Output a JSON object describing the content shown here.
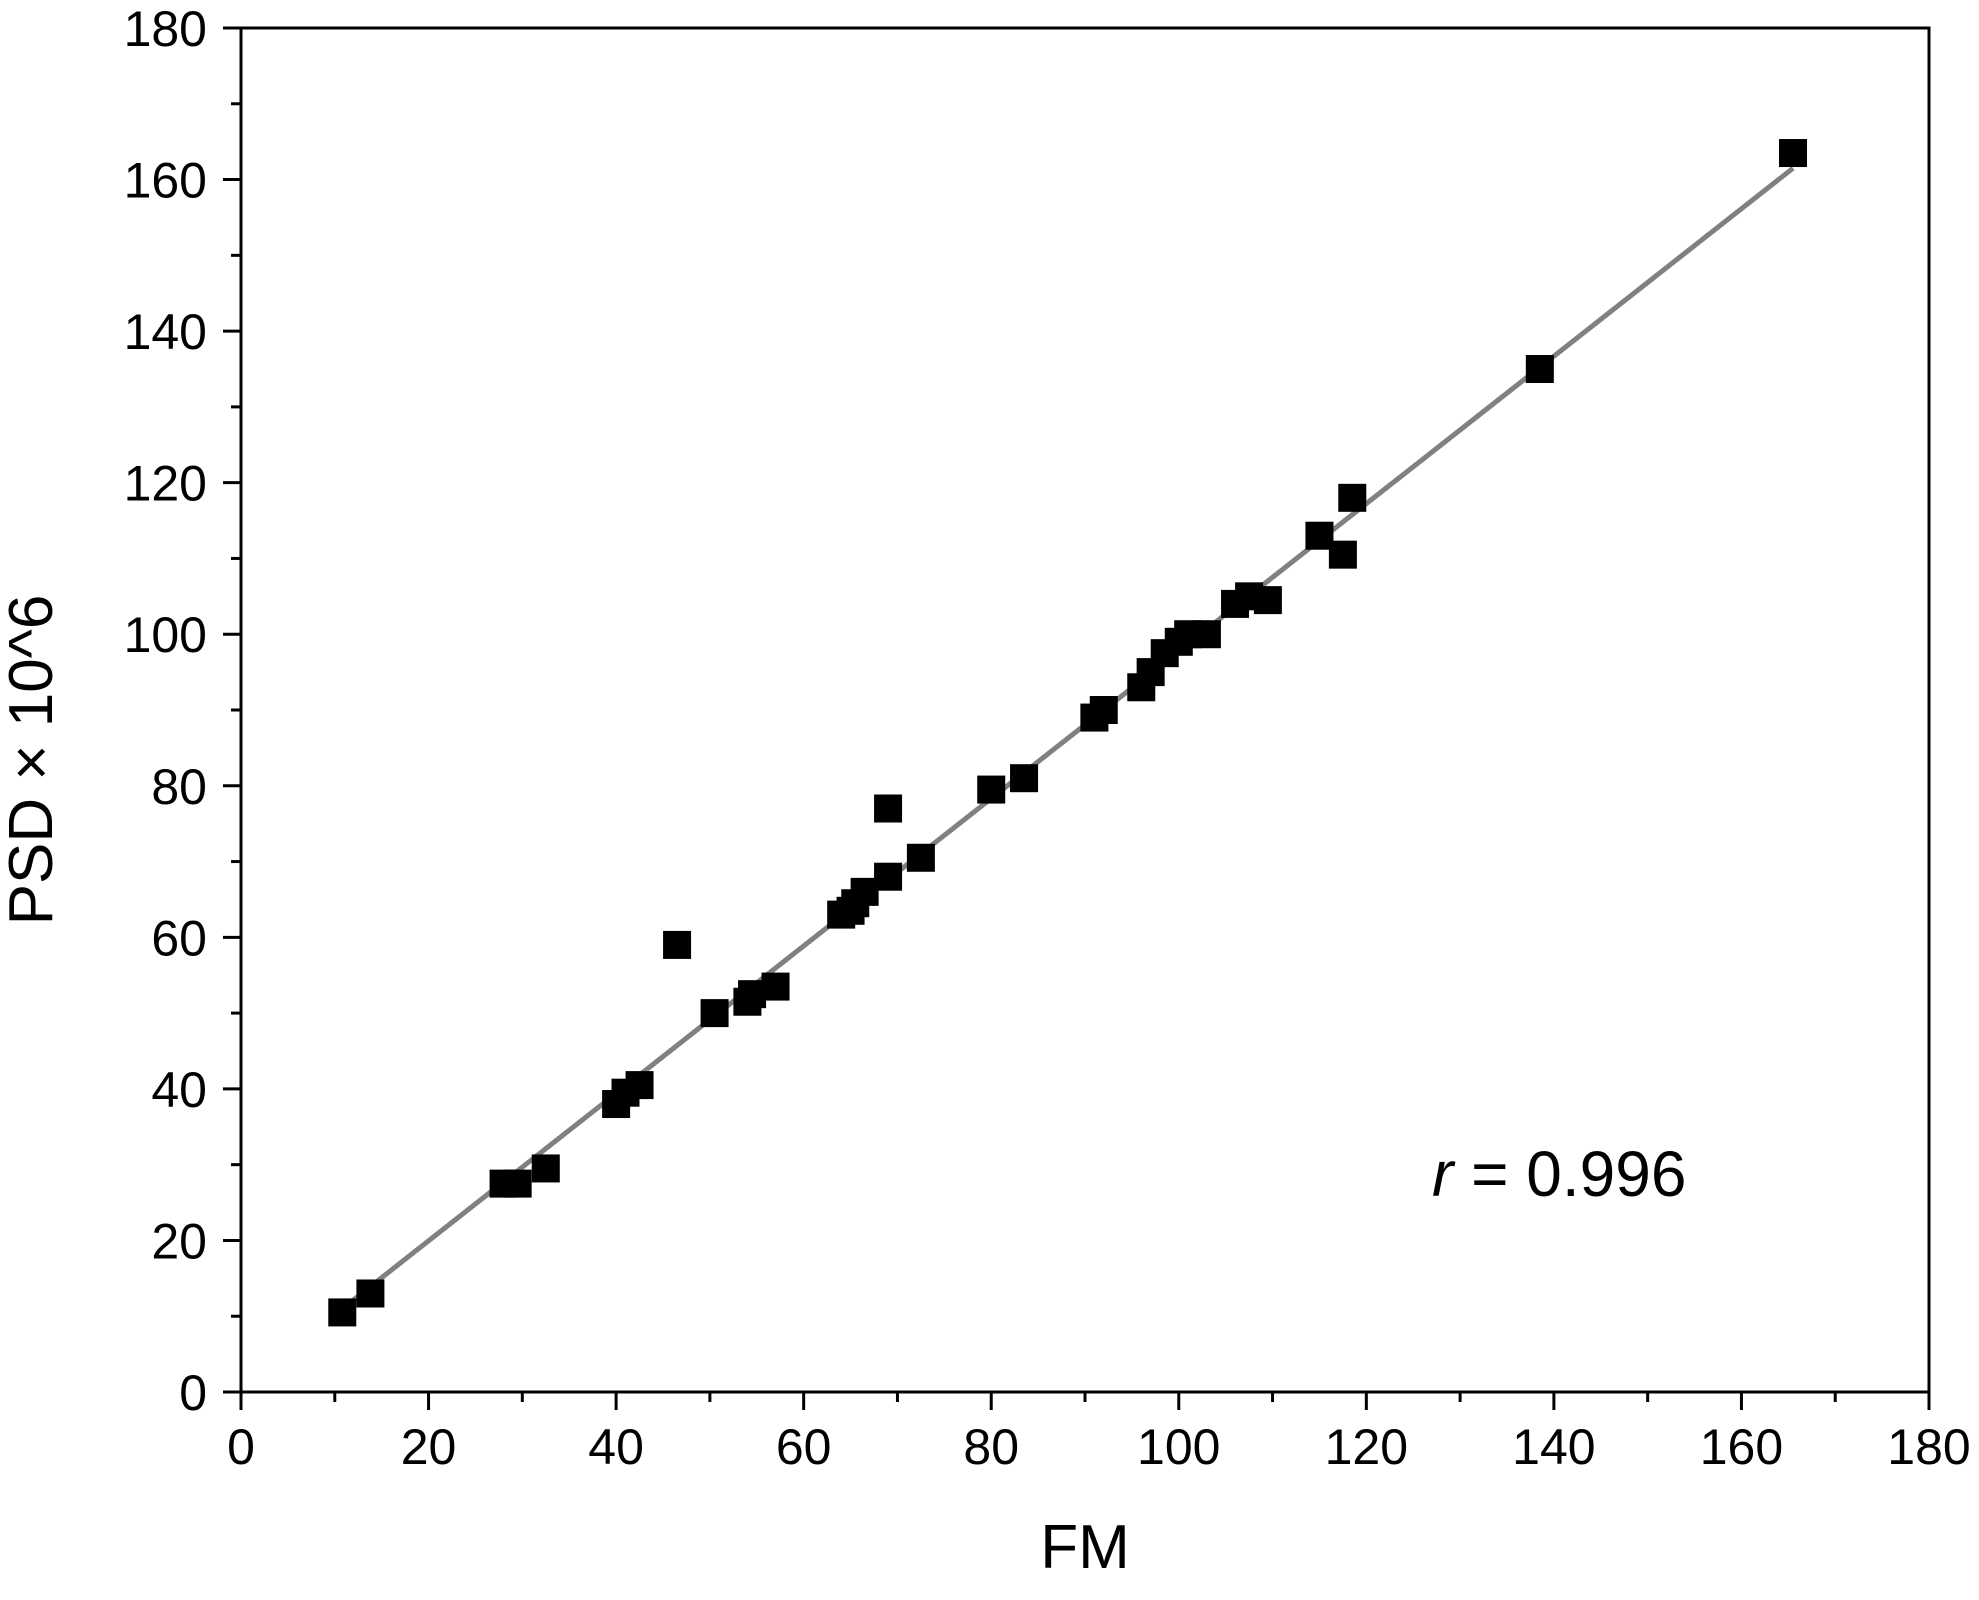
{
  "chart_data": {
    "type": "scatter",
    "title": "",
    "xlabel": "FM",
    "ylabel": "PSD × 10^6",
    "xlim": [
      0,
      180
    ],
    "ylim": [
      0,
      180
    ],
    "xticks": [
      "0",
      "20",
      "40",
      "60",
      "80",
      "100",
      "120",
      "140",
      "160",
      "180"
    ],
    "yticks": [
      "0",
      "20",
      "40",
      "60",
      "80",
      "100",
      "120",
      "140",
      "160",
      "180"
    ],
    "grid": false,
    "legend": "none",
    "annotation": {
      "prefix": "r",
      "text": " = 0.996"
    },
    "series": [
      {
        "type": "scatter",
        "marker": "square",
        "color": "#000000",
        "points": [
          [
            10.8,
            10.5
          ],
          [
            13.8,
            13.0
          ],
          [
            28.0,
            27.5
          ],
          [
            29.5,
            27.5
          ],
          [
            32.5,
            29.5
          ],
          [
            40.0,
            38.0
          ],
          [
            41.0,
            39.5
          ],
          [
            42.5,
            40.5
          ],
          [
            46.5,
            59.0
          ],
          [
            50.5,
            50.0
          ],
          [
            54.0,
            51.5
          ],
          [
            54.5,
            52.5
          ],
          [
            57.0,
            53.5
          ],
          [
            64.0,
            63.0
          ],
          [
            65.0,
            63.5
          ],
          [
            65.5,
            64.5
          ],
          [
            66.5,
            66.0
          ],
          [
            69.0,
            68.0
          ],
          [
            69.0,
            77.0
          ],
          [
            72.5,
            70.5
          ],
          [
            80.0,
            79.5
          ],
          [
            83.5,
            81.0
          ],
          [
            91.0,
            89.0
          ],
          [
            92.0,
            90.0
          ],
          [
            96.0,
            93.0
          ],
          [
            97.0,
            95.0
          ],
          [
            98.5,
            97.5
          ],
          [
            100.0,
            99.0
          ],
          [
            101.0,
            100.0
          ],
          [
            103.0,
            100.0
          ],
          [
            106.0,
            104.0
          ],
          [
            107.5,
            105.0
          ],
          [
            109.5,
            104.5
          ],
          [
            115.0,
            113.0
          ],
          [
            117.5,
            110.5
          ],
          [
            118.5,
            118.0
          ],
          [
            138.5,
            135.0
          ],
          [
            165.5,
            163.5
          ]
        ]
      },
      {
        "type": "line",
        "color": "#808080",
        "x": [
          10.8,
          165.5
        ],
        "y": [
          11.0,
          161.5
        ]
      }
    ]
  }
}
